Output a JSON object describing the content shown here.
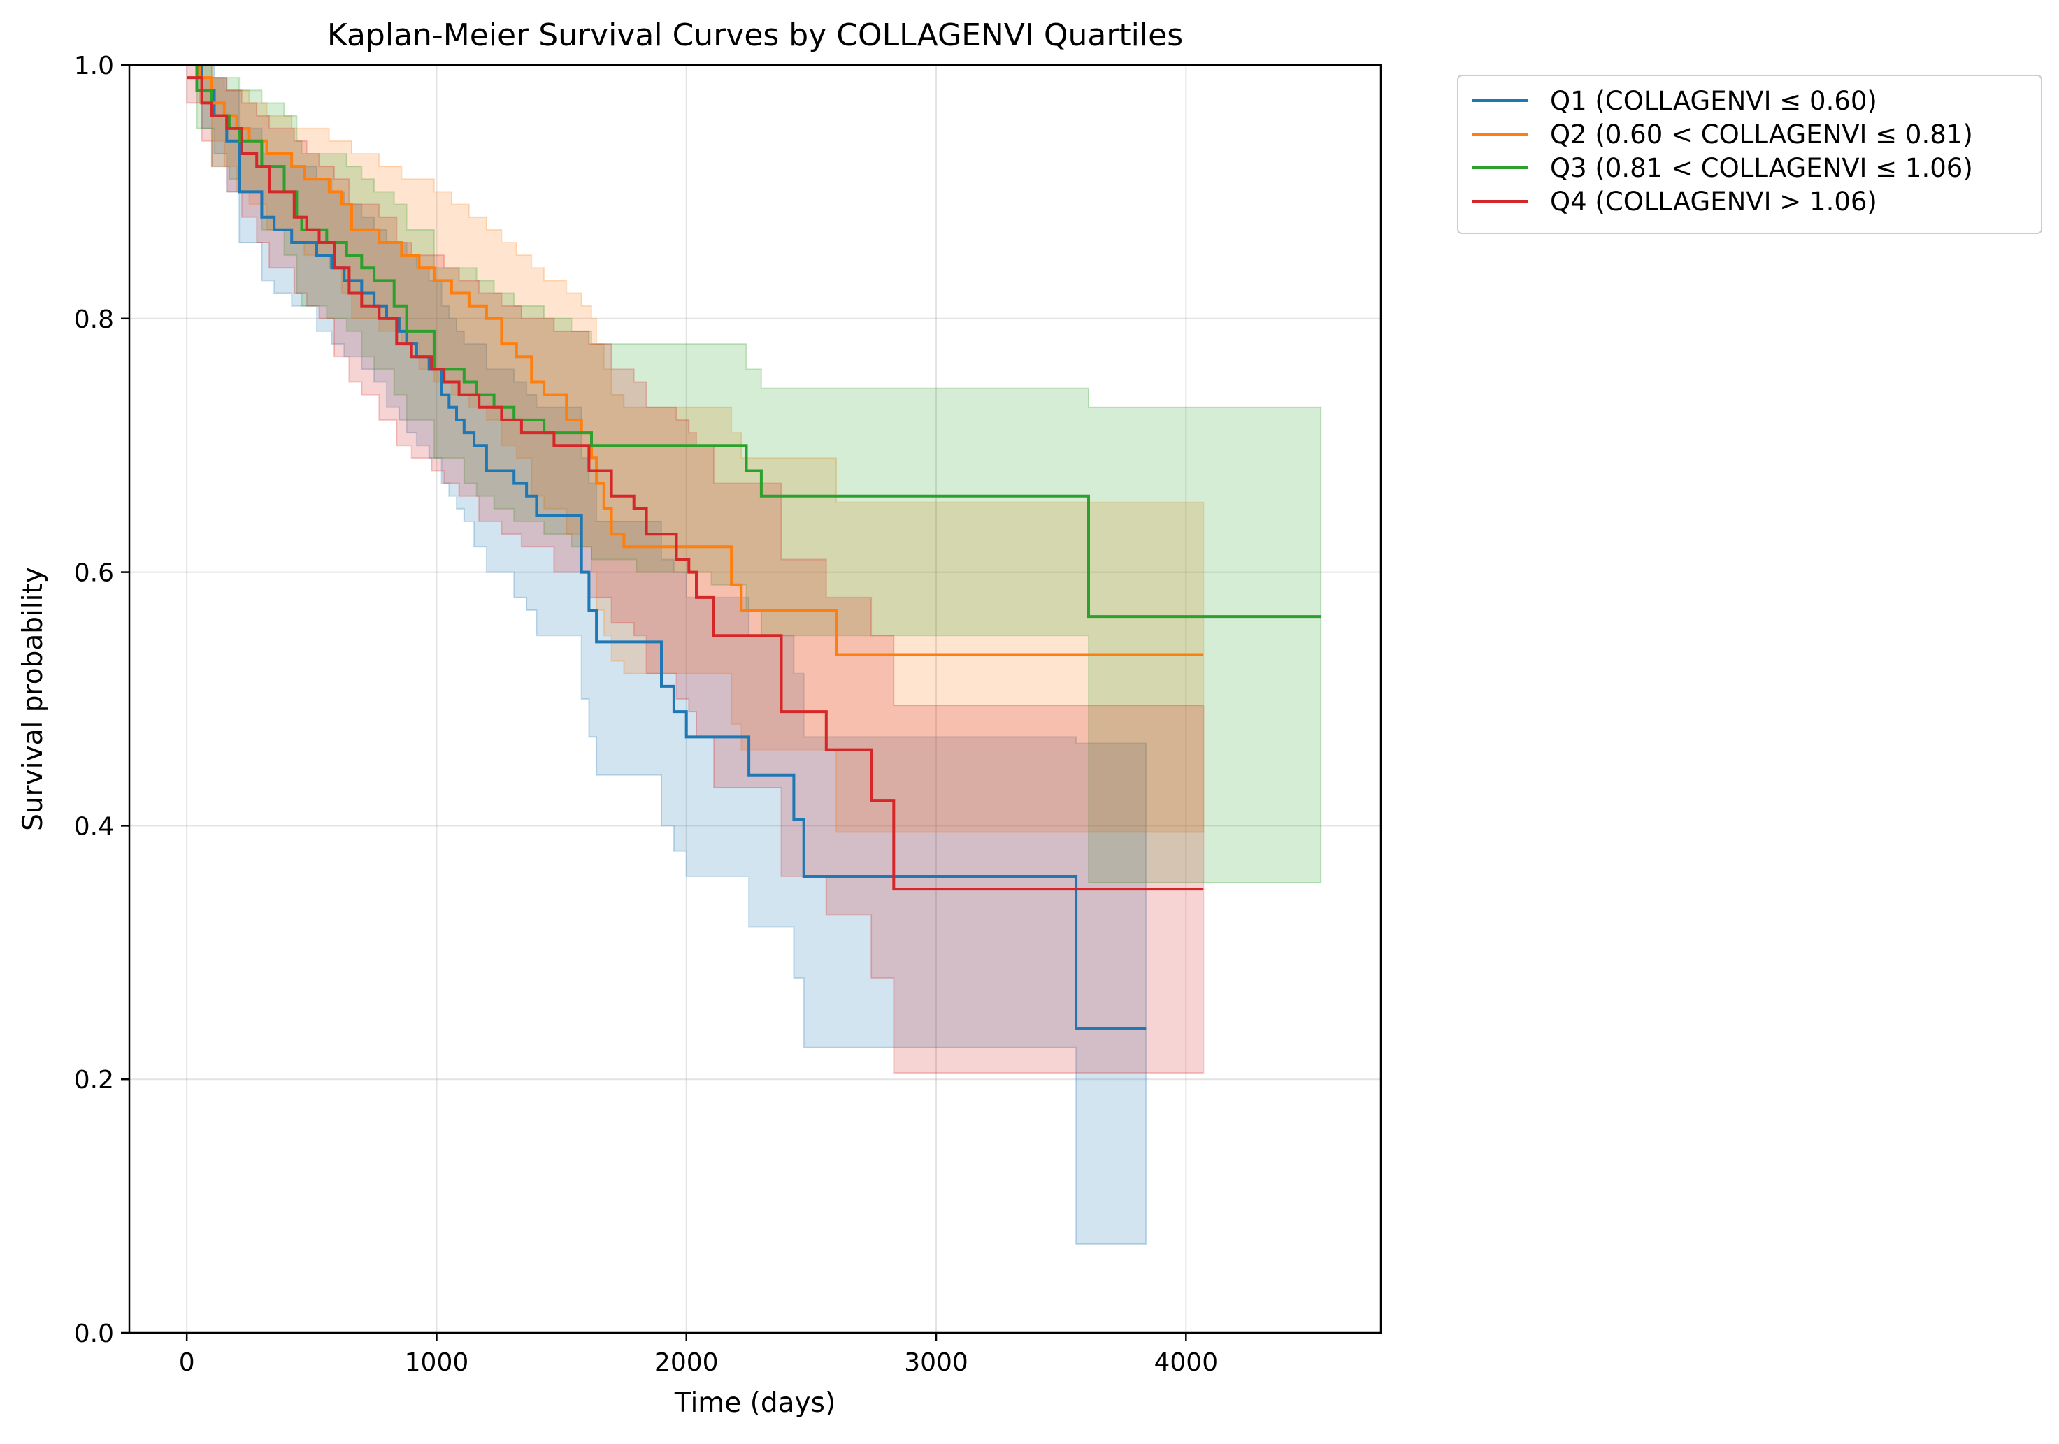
{
  "chart_data": {
    "type": "line",
    "title": "Kaplan-Meier Survival Curves by COLLAGENVI Quartiles",
    "xlabel": "Time (days)",
    "ylabel": "Survival probability",
    "xlim": [
      -230,
      4780
    ],
    "ylim": [
      0.0,
      1.0
    ],
    "x_ticks": [
      0,
      1000,
      2000,
      3000,
      4000
    ],
    "y_ticks": [
      0.0,
      0.2,
      0.4,
      0.6,
      0.8,
      1.0
    ],
    "x_tick_labels": [
      "0",
      "1000",
      "2000",
      "3000",
      "4000"
    ],
    "y_tick_labels": [
      "0.0",
      "0.2",
      "0.4",
      "0.6",
      "0.8",
      "1.0"
    ],
    "grid": true,
    "legend_position": "outside-top-right",
    "confidence_bands": true,
    "series": [
      {
        "name": "Q1 (COLLAGENVI ≤ 0.60)",
        "color": "#1f77b4",
        "x": [
          0,
          60,
          110,
          160,
          210,
          300,
          350,
          420,
          470,
          520,
          580,
          630,
          700,
          750,
          800,
          850,
          880,
          920,
          970,
          1020,
          1050,
          1080,
          1110,
          1150,
          1200,
          1310,
          1360,
          1400,
          1580,
          1610,
          1640,
          1680,
          1900,
          1950,
          2000,
          2250,
          2430,
          2470,
          3560,
          3840
        ],
        "y": [
          1.0,
          0.98,
          0.96,
          0.94,
          0.9,
          0.88,
          0.87,
          0.86,
          0.86,
          0.85,
          0.84,
          0.83,
          0.82,
          0.81,
          0.8,
          0.79,
          0.78,
          0.77,
          0.76,
          0.74,
          0.73,
          0.72,
          0.71,
          0.7,
          0.68,
          0.67,
          0.66,
          0.645,
          0.6,
          0.57,
          0.545,
          0.545,
          0.51,
          0.49,
          0.47,
          0.44,
          0.405,
          0.36,
          0.24,
          0.24
        ],
        "ci_lower": [
          1.0,
          0.95,
          0.93,
          0.9,
          0.86,
          0.83,
          0.82,
          0.81,
          0.81,
          0.79,
          0.78,
          0.77,
          0.76,
          0.75,
          0.73,
          0.72,
          0.71,
          0.7,
          0.69,
          0.67,
          0.66,
          0.65,
          0.64,
          0.62,
          0.6,
          0.58,
          0.57,
          0.55,
          0.5,
          0.47,
          0.44,
          0.44,
          0.4,
          0.38,
          0.36,
          0.32,
          0.28,
          0.225,
          0.07,
          0.07
        ],
        "ci_upper": [
          1.0,
          1.0,
          0.99,
          0.98,
          0.95,
          0.93,
          0.93,
          0.92,
          0.92,
          0.91,
          0.9,
          0.89,
          0.88,
          0.87,
          0.86,
          0.86,
          0.85,
          0.84,
          0.83,
          0.81,
          0.8,
          0.79,
          0.78,
          0.78,
          0.76,
          0.75,
          0.74,
          0.73,
          0.69,
          0.67,
          0.64,
          0.64,
          0.61,
          0.6,
          0.58,
          0.55,
          0.52,
          0.47,
          0.465,
          0.465
        ]
      },
      {
        "name": "Q2 (0.60 < COLLAGENVI ≤ 0.81)",
        "color": "#ff7f0e",
        "x": [
          0,
          50,
          100,
          150,
          200,
          250,
          320,
          420,
          470,
          570,
          620,
          660,
          770,
          860,
          930,
          990,
          1060,
          1130,
          1200,
          1260,
          1320,
          1380,
          1430,
          1520,
          1580,
          1620,
          1640,
          1670,
          1700,
          1750,
          2180,
          2220,
          2240,
          2600,
          4070
        ],
        "y": [
          1.0,
          0.99,
          0.97,
          0.96,
          0.95,
          0.94,
          0.93,
          0.92,
          0.91,
          0.9,
          0.89,
          0.87,
          0.86,
          0.85,
          0.84,
          0.83,
          0.82,
          0.81,
          0.8,
          0.78,
          0.77,
          0.75,
          0.74,
          0.72,
          0.71,
          0.69,
          0.67,
          0.65,
          0.63,
          0.62,
          0.59,
          0.57,
          0.57,
          0.535,
          0.535
        ],
        "ci_lower": [
          1.0,
          0.97,
          0.94,
          0.92,
          0.9,
          0.89,
          0.87,
          0.86,
          0.85,
          0.84,
          0.82,
          0.8,
          0.79,
          0.78,
          0.76,
          0.75,
          0.74,
          0.73,
          0.72,
          0.7,
          0.69,
          0.66,
          0.65,
          0.63,
          0.62,
          0.6,
          0.57,
          0.55,
          0.53,
          0.52,
          0.48,
          0.46,
          0.46,
          0.395,
          0.395
        ],
        "ci_upper": [
          1.0,
          1.0,
          0.99,
          0.98,
          0.98,
          0.97,
          0.96,
          0.95,
          0.95,
          0.94,
          0.94,
          0.93,
          0.92,
          0.91,
          0.91,
          0.9,
          0.89,
          0.88,
          0.87,
          0.86,
          0.85,
          0.84,
          0.83,
          0.82,
          0.81,
          0.8,
          0.78,
          0.76,
          0.74,
          0.73,
          0.71,
          0.69,
          0.69,
          0.655,
          0.655
        ]
      },
      {
        "name": "Q3 (0.81 < COLLAGENVI ≤ 1.06)",
        "color": "#2ca02c",
        "x": [
          0,
          40,
          100,
          170,
          210,
          300,
          390,
          440,
          460,
          560,
          640,
          700,
          750,
          830,
          880,
          990,
          1110,
          1160,
          1230,
          1310,
          1340,
          1430,
          1450,
          1540,
          1590,
          1620,
          1650,
          1800,
          2100,
          2240,
          2300,
          3610,
          4540
        ],
        "y": [
          1.0,
          0.98,
          0.96,
          0.95,
          0.94,
          0.92,
          0.9,
          0.88,
          0.87,
          0.86,
          0.85,
          0.84,
          0.83,
          0.81,
          0.79,
          0.76,
          0.75,
          0.74,
          0.73,
          0.72,
          0.72,
          0.71,
          0.71,
          0.71,
          0.71,
          0.7,
          0.7,
          0.7,
          0.7,
          0.68,
          0.66,
          0.565,
          0.565
        ],
        "ci_lower": [
          1.0,
          0.95,
          0.92,
          0.91,
          0.9,
          0.87,
          0.85,
          0.82,
          0.81,
          0.8,
          0.79,
          0.77,
          0.76,
          0.74,
          0.72,
          0.69,
          0.67,
          0.66,
          0.65,
          0.64,
          0.64,
          0.63,
          0.63,
          0.62,
          0.62,
          0.61,
          0.61,
          0.6,
          0.59,
          0.57,
          0.55,
          0.355,
          0.355
        ],
        "ci_upper": [
          1.0,
          1.0,
          0.99,
          0.99,
          0.98,
          0.97,
          0.96,
          0.94,
          0.93,
          0.93,
          0.92,
          0.91,
          0.9,
          0.89,
          0.87,
          0.84,
          0.84,
          0.83,
          0.82,
          0.81,
          0.81,
          0.8,
          0.8,
          0.79,
          0.79,
          0.78,
          0.78,
          0.78,
          0.78,
          0.76,
          0.745,
          0.73,
          0.73
        ]
      },
      {
        "name": "Q4 (COLLAGENVI > 1.06)",
        "color": "#d62728",
        "x": [
          0,
          60,
          100,
          160,
          220,
          280,
          330,
          430,
          480,
          530,
          590,
          650,
          700,
          770,
          840,
          900,
          980,
          1030,
          1090,
          1170,
          1260,
          1340,
          1470,
          1610,
          1700,
          1790,
          1840,
          1960,
          2010,
          2040,
          2110,
          2380,
          2560,
          2740,
          2830,
          4070
        ],
        "y": [
          0.99,
          0.97,
          0.96,
          0.95,
          0.93,
          0.92,
          0.9,
          0.88,
          0.87,
          0.86,
          0.84,
          0.82,
          0.81,
          0.8,
          0.78,
          0.77,
          0.76,
          0.75,
          0.74,
          0.73,
          0.72,
          0.71,
          0.7,
          0.68,
          0.66,
          0.65,
          0.63,
          0.61,
          0.6,
          0.58,
          0.55,
          0.49,
          0.46,
          0.42,
          0.35,
          0.35
        ],
        "ci_lower": [
          0.97,
          0.94,
          0.92,
          0.9,
          0.88,
          0.86,
          0.84,
          0.82,
          0.81,
          0.8,
          0.77,
          0.75,
          0.74,
          0.72,
          0.7,
          0.69,
          0.68,
          0.67,
          0.66,
          0.64,
          0.63,
          0.62,
          0.6,
          0.58,
          0.56,
          0.55,
          0.52,
          0.5,
          0.49,
          0.47,
          0.43,
          0.36,
          0.33,
          0.28,
          0.205,
          0.205
        ],
        "ci_upper": [
          1.0,
          0.99,
          0.99,
          0.98,
          0.97,
          0.96,
          0.95,
          0.94,
          0.93,
          0.92,
          0.91,
          0.89,
          0.89,
          0.88,
          0.86,
          0.85,
          0.85,
          0.84,
          0.83,
          0.82,
          0.81,
          0.8,
          0.79,
          0.78,
          0.76,
          0.75,
          0.73,
          0.72,
          0.71,
          0.7,
          0.67,
          0.61,
          0.58,
          0.55,
          0.495,
          0.495
        ]
      }
    ]
  }
}
